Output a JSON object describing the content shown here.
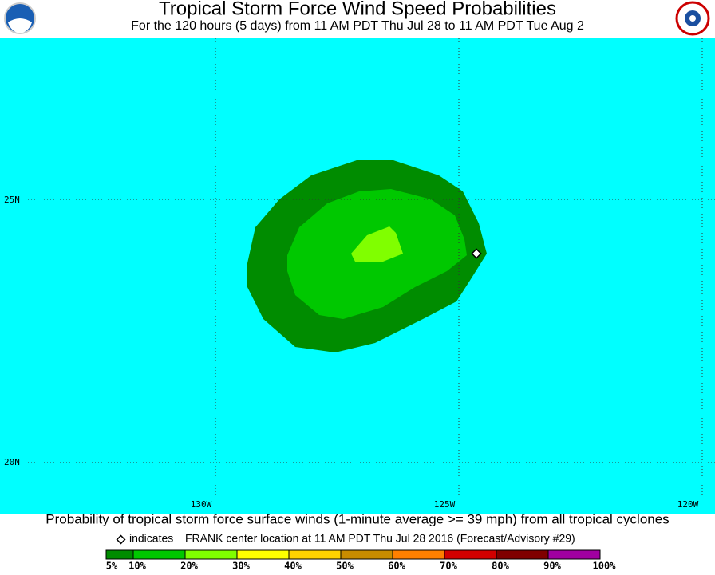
{
  "header": {
    "title": "Tropical Storm Force Wind Speed Probabilities",
    "subtitle": "For the 120 hours (5 days) from 11 AM PDT Thu Jul 28 to 11 AM PDT Tue Aug 2"
  },
  "map": {
    "lat_labels": [
      "25N",
      "20N"
    ],
    "lon_labels": [
      "130W",
      "125W",
      "120W"
    ]
  },
  "caption": "Probability of tropical storm force surface winds (1-minute average >= 39 mph) from all tropical cyclones",
  "indicator": {
    "word": "indicates",
    "text": "FRANK center location at 11 AM PDT Thu Jul 28 2016 (Forecast/Advisory #29)"
  },
  "legend": {
    "colors": [
      "#008c00",
      "#00c800",
      "#80ff00",
      "#ffff00",
      "#ffd200",
      "#c88c00",
      "#ff8000",
      "#d20000",
      "#800000",
      "#a000a0"
    ],
    "labels": [
      "5%",
      "10%",
      "20%",
      "30%",
      "40%",
      "50%",
      "60%",
      "70%",
      "80%",
      "90%",
      "100%"
    ]
  }
}
